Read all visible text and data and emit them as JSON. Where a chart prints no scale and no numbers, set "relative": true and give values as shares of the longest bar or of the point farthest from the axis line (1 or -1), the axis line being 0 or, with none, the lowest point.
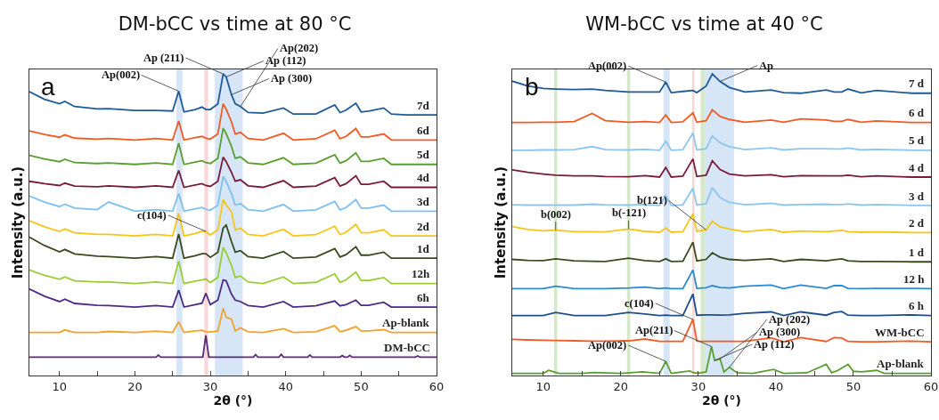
{
  "chart_data": [
    {
      "type": "line",
      "title": "DM-bCC vs time at 80 °C",
      "xlabel": "2θ (°)",
      "ylabel": "Intensity (a.u.)",
      "relative": true,
      "xlim": [
        6,
        60
      ],
      "xticks": [
        10,
        {
          "value": 15,
          "label": null
        },
        20,
        {
          "value": 25,
          "label": null
        },
        30,
        {
          "value": 35,
          "label": null
        },
        40,
        {
          "value": 45,
          "label": null
        },
        50,
        {
          "value": 55,
          "label": null
        },
        60
      ],
      "x": [
        6,
        8,
        10,
        10.7,
        12,
        15,
        16.5,
        20,
        22.8,
        25,
        25.8,
        26.5,
        28,
        28.9,
        29.4,
        30,
        31,
        31.7,
        32.1,
        32.8,
        33.3,
        34,
        35,
        37,
        39.7,
        41,
        44,
        46.5,
        47.2,
        48,
        49.3,
        50,
        51,
        53,
        54,
        56,
        60
      ],
      "series": [
        {
          "name": "7d",
          "color": "#1f5a96",
          "values": [
            0.941,
            0.916,
            0.901,
            0.909,
            0.892,
            0.884,
            0.885,
            0.879,
            0.879,
            0.877,
            0.943,
            0.874,
            0.882,
            0.89,
            0.882,
            0.882,
            0.901,
            1,
            0.99,
            0.931,
            0.901,
            0.892,
            0.872,
            0.87,
            0.887,
            0.867,
            0.867,
            0.897,
            0.872,
            0.88,
            0.903,
            0.874,
            0.877,
            0.887,
            0.867,
            0.864,
            0.864
          ]
        },
        {
          "name": "6d",
          "color": "#f15a24",
          "values": [
            0.811,
            0.799,
            0.79,
            0.798,
            0.787,
            0.784,
            0.786,
            0.781,
            0.786,
            0.781,
            0.844,
            0.781,
            0.789,
            0.793,
            0.787,
            0.784,
            0.801,
            0.901,
            0.883,
            0.841,
            0.801,
            0.806,
            0.786,
            0.781,
            0.803,
            0.781,
            0.785,
            0.813,
            0.785,
            0.793,
            0.819,
            0.791,
            0.791,
            0.801,
            0.781,
            0.781,
            0.781
          ]
        },
        {
          "name": "5d",
          "color": "#5a9e2e",
          "values": [
            0.73,
            0.718,
            0.709,
            0.717,
            0.706,
            0.703,
            0.705,
            0.7,
            0.705,
            0.7,
            0.77,
            0.7,
            0.708,
            0.712,
            0.706,
            0.703,
            0.72,
            0.82,
            0.802,
            0.76,
            0.72,
            0.725,
            0.705,
            0.7,
            0.722,
            0.7,
            0.704,
            0.732,
            0.704,
            0.712,
            0.738,
            0.71,
            0.71,
            0.72,
            0.7,
            0.7,
            0.7
          ]
        },
        {
          "name": "4d",
          "color": "#7a1a3a",
          "values": [
            0.644,
            0.636,
            0.63,
            0.638,
            0.628,
            0.626,
            0.629,
            0.624,
            0.629,
            0.624,
            0.68,
            0.624,
            0.632,
            0.636,
            0.63,
            0.627,
            0.644,
            0.724,
            0.709,
            0.674,
            0.644,
            0.649,
            0.629,
            0.624,
            0.646,
            0.624,
            0.628,
            0.656,
            0.628,
            0.636,
            0.662,
            0.634,
            0.634,
            0.644,
            0.624,
            0.624,
            0.624
          ]
        },
        {
          "name": "3d",
          "color": "#7fbfef",
          "values": [
            0.595,
            0.575,
            0.56,
            0.568,
            0.555,
            0.55,
            0.575,
            0.545,
            0.55,
            0.545,
            0.603,
            0.545,
            0.553,
            0.557,
            0.551,
            0.548,
            0.565,
            0.66,
            0.643,
            0.603,
            0.565,
            0.57,
            0.55,
            0.545,
            0.567,
            0.545,
            0.549,
            0.577,
            0.549,
            0.557,
            0.583,
            0.555,
            0.555,
            0.565,
            0.545,
            0.545,
            0.545
          ]
        },
        {
          "name": "2d",
          "color": "#f5c518",
          "values": [
            0.513,
            0.493,
            0.478,
            0.486,
            0.473,
            0.468,
            0.468,
            0.463,
            0.468,
            0.463,
            0.537,
            0.463,
            0.471,
            0.478,
            0.478,
            0.466,
            0.483,
            0.583,
            0.565,
            0.543,
            0.483,
            0.488,
            0.468,
            0.463,
            0.485,
            0.463,
            0.467,
            0.495,
            0.467,
            0.475,
            0.501,
            0.473,
            0.473,
            0.483,
            0.463,
            0.463,
            0.463
          ]
        },
        {
          "name": "1d",
          "color": "#3b4a1e",
          "values": [
            0.459,
            0.431,
            0.41,
            0.418,
            0.403,
            0.396,
            0.394,
            0.389,
            0.394,
            0.389,
            0.469,
            0.389,
            0.397,
            0.404,
            0.404,
            0.392,
            0.409,
            0.489,
            0.499,
            0.444,
            0.409,
            0.414,
            0.394,
            0.389,
            0.411,
            0.389,
            0.393,
            0.421,
            0.393,
            0.401,
            0.427,
            0.399,
            0.399,
            0.409,
            0.389,
            0.389,
            0.389
          ]
        },
        {
          "name": "12h",
          "color": "#9acd32",
          "values": [
            0.35,
            0.332,
            0.319,
            0.327,
            0.314,
            0.31,
            0.31,
            0.305,
            0.31,
            0.305,
            0.379,
            0.305,
            0.313,
            0.317,
            0.32,
            0.308,
            0.325,
            0.425,
            0.407,
            0.365,
            0.325,
            0.33,
            0.31,
            0.305,
            0.327,
            0.305,
            0.309,
            0.337,
            0.309,
            0.317,
            0.343,
            0.315,
            0.315,
            0.325,
            0.305,
            0.305,
            0.305
          ]
        },
        {
          "name": "6h",
          "color": "#4b2a84",
          "values": [
            0.287,
            0.263,
            0.245,
            0.253,
            0.239,
            0.233,
            0.232,
            0.227,
            0.232,
            0.227,
            0.283,
            0.227,
            0.235,
            0.24,
            0.273,
            0.235,
            0.25,
            0.317,
            0.314,
            0.27,
            0.25,
            0.245,
            0.232,
            0.227,
            0.245,
            0.227,
            0.231,
            0.247,
            0.231,
            0.235,
            0.25,
            0.233,
            0.233,
            0.243,
            0.227,
            0.227,
            0.227
          ]
        },
        {
          "name": "Ap-blank",
          "color": "#f5a02a",
          "values": [
            0.143,
            0.143,
            0.143,
            0.151,
            0.143,
            0.143,
            0.146,
            0.143,
            0.147,
            0.143,
            0.178,
            0.143,
            0.148,
            0.15,
            0.145,
            0.144,
            0.148,
            0.223,
            0.193,
            0.187,
            0.148,
            0.158,
            0.145,
            0.143,
            0.155,
            0.143,
            0.145,
            0.165,
            0.145,
            0.15,
            0.162,
            0.148,
            0.148,
            0.152,
            0.143,
            0.143,
            0.143
          ]
        },
        {
          "name": "DM-bCC",
          "color": "#5b2a7a",
          "x": [
            6,
            22.8,
            23.1,
            23.4,
            29,
            29.4,
            29.8,
            35.7,
            36,
            36.3,
            39.1,
            39.4,
            39.7,
            42.9,
            43.2,
            43.5,
            47.2,
            47.5,
            47.8,
            48.2,
            48.5,
            48.8,
            57.2,
            57.5,
            57.8,
            60
          ],
          "values": [
            0.061,
            0.061,
            0.068,
            0.061,
            0.061,
            0.133,
            0.061,
            0.061,
            0.069,
            0.061,
            0.061,
            0.07,
            0.061,
            0.061,
            0.068,
            0.061,
            0.061,
            0.066,
            0.061,
            0.061,
            0.067,
            0.061,
            0.061,
            0.065,
            0.061,
            0.061
          ]
        }
      ],
      "bands": [
        {
          "axis": "x",
          "from": 25.5,
          "to": 26.3,
          "color": "#d6e6f7"
        },
        {
          "axis": "x",
          "from": 29.2,
          "to": 29.7,
          "color": "#f8d7d7"
        },
        {
          "axis": "x",
          "from": 30.6,
          "to": 34.3,
          "color": "#d6e6f7"
        }
      ],
      "annotations": [
        "a",
        {
          "text": "Ap(002)",
          "x": 25.8,
          "y": 0.943
        },
        {
          "text": "Ap (211)",
          "x": 31.7,
          "y": 1
        },
        {
          "text": "Ap (112)",
          "x": 32.1,
          "y": 0.99
        },
        {
          "text": "Ap (300)",
          "x": 32.8,
          "y": 0.931
        },
        {
          "text": "Ap(202)",
          "x": 34,
          "y": 0.892
        },
        {
          "text": "c(104)",
          "x": 29.4,
          "y": 0.478
        }
      ]
    },
    {
      "type": "line",
      "title": "WM-bCC vs time at 40 °C",
      "xlabel": "2θ (°)",
      "ylabel": "Intensity (a.u.)",
      "relative": true,
      "xlim": [
        6,
        60
      ],
      "xticks": [
        10,
        {
          "value": 15,
          "label": null
        },
        20,
        {
          "value": 25,
          "label": null
        },
        30,
        {
          "value": 35,
          "label": null
        },
        40,
        {
          "value": 45,
          "label": null
        },
        50,
        {
          "value": 55,
          "label": null
        },
        60
      ],
      "x": [
        6,
        8,
        10,
        11.6,
        14,
        16.3,
        18,
        21,
        23.1,
        25,
        25.8,
        26.5,
        28,
        29.3,
        29.8,
        31,
        31.8,
        32.8,
        34,
        36,
        39.4,
        41,
        43.2,
        46.5,
        47.5,
        48.5,
        49.3,
        51,
        53,
        57.5,
        60
      ],
      "series": [
        {
          "name": "7 d",
          "color": "#1f5a96",
          "values": [
            0.976,
            0.96,
            0.952,
            0.95,
            0.948,
            0.95,
            0.945,
            0.94,
            0.94,
            0.94,
            0.973,
            0.938,
            0.942,
            0.945,
            0.938,
            0.96,
            1,
            0.975,
            0.955,
            0.94,
            0.947,
            0.938,
            0.936,
            0.947,
            0.94,
            0.94,
            0.95,
            0.937,
            0.945,
            0.936,
            0.936
          ]
        },
        {
          "name": "6 d",
          "color": "#f15a24",
          "values": [
            0.839,
            0.839,
            0.84,
            0.84,
            0.842,
            0.869,
            0.845,
            0.84,
            0.842,
            0.839,
            0.864,
            0.839,
            0.841,
            0.871,
            0.84,
            0.845,
            0.881,
            0.859,
            0.849,
            0.84,
            0.847,
            0.84,
            0.851,
            0.847,
            0.843,
            0.843,
            0.849,
            0.84,
            0.844,
            0.839,
            0.839
          ]
        },
        {
          "name": "5 d",
          "color": "#8ec5f0",
          "values": [
            0.747,
            0.747,
            0.748,
            0.748,
            0.749,
            0.759,
            0.749,
            0.748,
            0.75,
            0.747,
            0.777,
            0.747,
            0.749,
            0.804,
            0.748,
            0.752,
            0.794,
            0.772,
            0.759,
            0.749,
            0.755,
            0.748,
            0.752,
            0.752,
            0.751,
            0.751,
            0.754,
            0.748,
            0.75,
            0.747,
            0.747
          ]
        },
        {
          "name": "4 d",
          "color": "#7a1a3a",
          "values": [
            0.682,
            0.674,
            0.668,
            0.664,
            0.662,
            0.662,
            0.66,
            0.659,
            0.663,
            0.658,
            0.69,
            0.658,
            0.661,
            0.718,
            0.66,
            0.664,
            0.712,
            0.683,
            0.668,
            0.662,
            0.666,
            0.659,
            0.663,
            0.662,
            0.662,
            0.662,
            0.664,
            0.659,
            0.662,
            0.658,
            0.658
          ]
        },
        {
          "name": "3 d",
          "color": "#8ec5f0",
          "values": [
            0.566,
            0.565,
            0.565,
            0.565,
            0.565,
            0.568,
            0.566,
            0.565,
            0.567,
            0.564,
            0.596,
            0.564,
            0.566,
            0.621,
            0.565,
            0.57,
            0.623,
            0.59,
            0.574,
            0.566,
            0.571,
            0.565,
            0.567,
            0.568,
            0.567,
            0.567,
            0.569,
            0.565,
            0.567,
            0.564,
            0.564
          ]
        },
        {
          "name": "2 d",
          "color": "#f5c518",
          "values": [
            0.494,
            0.484,
            0.48,
            0.482,
            0.477,
            0.477,
            0.476,
            0.486,
            0.478,
            0.475,
            0.489,
            0.475,
            0.477,
            0.536,
            0.478,
            0.483,
            0.511,
            0.493,
            0.486,
            0.477,
            0.484,
            0.475,
            0.479,
            0.477,
            0.479,
            0.481,
            0.477,
            0.475,
            0.476,
            0.474,
            0.474
          ]
        },
        {
          "name": "1 d",
          "color": "#3b4a1e",
          "values": [
            0.385,
            0.382,
            0.381,
            0.387,
            0.38,
            0.379,
            0.378,
            0.389,
            0.381,
            0.378,
            0.387,
            0.378,
            0.379,
            0.442,
            0.38,
            0.385,
            0.407,
            0.392,
            0.385,
            0.382,
            0.387,
            0.378,
            0.385,
            0.38,
            0.384,
            0.387,
            0.38,
            0.378,
            0.378,
            0.377,
            0.377
          ]
        },
        {
          "name": "12 h",
          "color": "#2a8ad0",
          "values": [
            0.288,
            0.288,
            0.288,
            0.296,
            0.288,
            0.288,
            0.288,
            0.29,
            0.293,
            0.288,
            0.29,
            0.288,
            0.288,
            0.35,
            0.289,
            0.291,
            0.298,
            0.292,
            0.29,
            0.296,
            0.3,
            0.288,
            0.3,
            0.289,
            0.298,
            0.298,
            0.289,
            0.288,
            0.289,
            0.289,
            0.288
          ]
        },
        {
          "name": "6 h",
          "color": "#1f4f8a",
          "values": [
            0.199,
            0.199,
            0.199,
            0.209,
            0.199,
            0.199,
            0.199,
            0.209,
            0.204,
            0.199,
            0.2,
            0.199,
            0.199,
            0.27,
            0.2,
            0.201,
            0.201,
            0.2,
            0.201,
            0.206,
            0.211,
            0.199,
            0.211,
            0.2,
            0.209,
            0.212,
            0.2,
            0.199,
            0.199,
            0.201,
            0.199
          ]
        },
        {
          "name": "WM-bCC",
          "color": "#f15a24",
          "values": [
            0.12,
            0.118,
            0.117,
            0.116,
            0.115,
            0.114,
            0.114,
            0.115,
            0.121,
            0.113,
            0.113,
            0.113,
            0.113,
            0.186,
            0.114,
            0.113,
            0.113,
            0.113,
            0.113,
            0.113,
            0.125,
            0.112,
            0.126,
            0.113,
            0.126,
            0.124,
            0.113,
            0.112,
            0.112,
            0.114,
            0.112
          ]
        },
        {
          "name": "Ap-blank",
          "color": "#5a9e2e",
          "x": [
            6,
            8,
            10,
            10.7,
            12,
            15,
            16.5,
            20,
            22.8,
            25,
            25.8,
            26.5,
            28,
            28.9,
            29.4,
            30,
            31,
            31.7,
            32.1,
            32.8,
            33.3,
            34,
            35,
            37,
            39.7,
            41,
            44,
            46.5,
            47.2,
            48,
            49.3,
            50,
            51,
            53,
            54,
            56,
            60
          ],
          "values": [
            0.007,
            0.007,
            0.007,
            0.017,
            0.007,
            0.007,
            0.01,
            0.007,
            0.012,
            0.007,
            0.047,
            0.007,
            0.012,
            0.015,
            0.009,
            0.008,
            0.012,
            0.096,
            0.05,
            0.055,
            0.012,
            0.027,
            0.009,
            0.007,
            0.02,
            0.007,
            0.009,
            0.037,
            0.009,
            0.017,
            0.037,
            0.014,
            0.012,
            0.017,
            0.007,
            0.007,
            0.007
          ]
        }
      ],
      "bands": [
        {
          "axis": "x",
          "from": 25.5,
          "to": 26.3,
          "color": "#d6e6f7"
        },
        {
          "axis": "x",
          "from": 29.2,
          "to": 29.5,
          "color": "#f8d7d7"
        },
        {
          "axis": "x",
          "from": 30.8,
          "to": 34.6,
          "color": "#d6e6f7"
        },
        {
          "axis": "x",
          "from": 11.4,
          "to": 11.8,
          "color": "#d5e8c8"
        },
        {
          "axis": "x",
          "from": 20.8,
          "to": 21.2,
          "color": "#d5e8c8"
        },
        {
          "axis": "x",
          "from": 30.3,
          "to": 30.8,
          "color": "#d5e8c8"
        }
      ],
      "annotations": [
        "b",
        {
          "text": "Ap(002)",
          "x": 25.8,
          "y": 0.973
        },
        {
          "text": "Ap",
          "x": 32.8,
          "y": 0.975
        },
        {
          "text": "b(002)",
          "x": 11.6,
          "y": 0.482
        },
        {
          "text": "b(-121)",
          "x": 21,
          "y": 0.486
        },
        {
          "text": "b(121)",
          "x": 31,
          "y": 0.483
        },
        {
          "text": "c(104)",
          "x": 29.3,
          "y": 0.186
        },
        {
          "text": "Ap (112)",
          "x": 32.1,
          "y": 0.05
        },
        {
          "text": "Ap(002)",
          "x": 25.8,
          "y": 0.047
        },
        {
          "text": "Ap(211)",
          "x": 31.7,
          "y": 0.096
        },
        {
          "text": "Ap (300)",
          "x": 32.8,
          "y": 0.055
        },
        {
          "text": "Ap (202)",
          "x": 34,
          "y": 0.027
        }
      ]
    }
  ]
}
